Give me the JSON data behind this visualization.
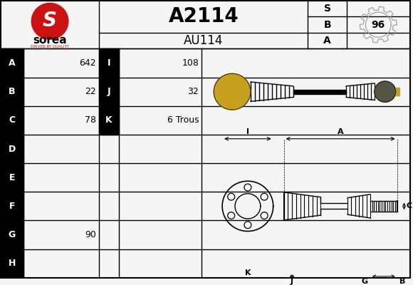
{
  "title": "A2114",
  "subtitle": "AU114",
  "bg_color": "#f5f5f5",
  "border_color": "#000000",
  "table_rows": [
    "A",
    "B",
    "C",
    "D",
    "E",
    "F",
    "G",
    "H"
  ],
  "col1_values": {
    "A": "642",
    "B": "22",
    "C": "78",
    "G": "90"
  },
  "col2_values": {
    "A": [
      "I",
      "108"
    ],
    "B": [
      "J",
      "32"
    ],
    "C": [
      "K",
      "6 Trous"
    ]
  },
  "abs_letters": [
    "A",
    "B",
    "S"
  ],
  "abs_number": "96",
  "sorea_red": "#cc1111",
  "sorea_text": "sorea",
  "sorea_tagline": "DRIVEN BY QUALITY",
  "gold_color": "#c8a020",
  "dark_gray": "#555544",
  "light_gray": "#aaaaaa"
}
